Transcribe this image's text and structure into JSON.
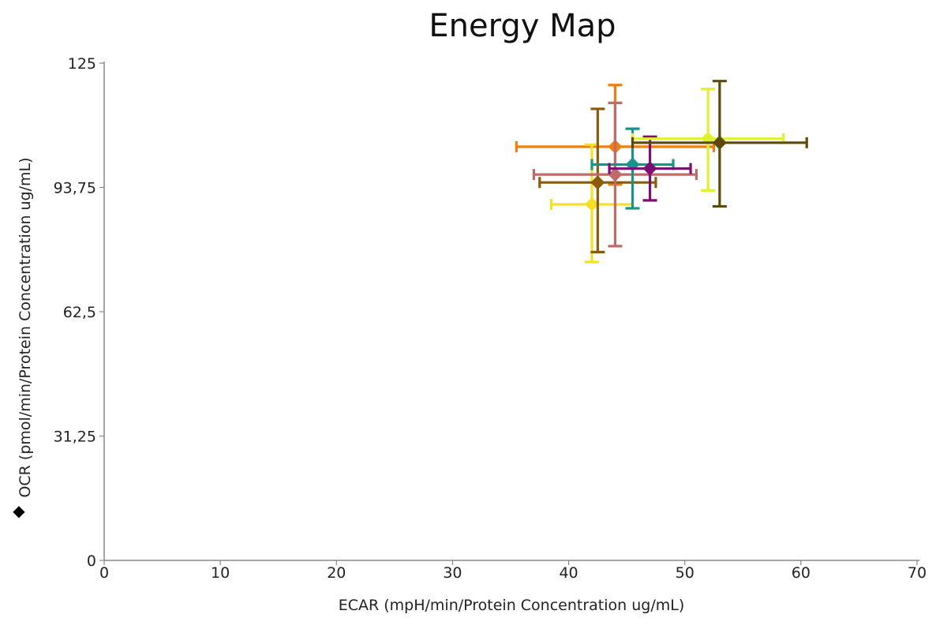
{
  "chart_data": {
    "type": "scatter",
    "title": "Energy Map",
    "xlabel": "ECAR (mpH/min/Protein Concentration ug/mL)",
    "ylabel": "OCR (pmol/min/Protein Concentration ug/mL)",
    "ylabel_marker": "◆",
    "xlim": [
      0,
      70
    ],
    "ylim": [
      0,
      125
    ],
    "x_ticks": [
      "0",
      "10",
      "20",
      "30",
      "40",
      "50",
      "60",
      "70"
    ],
    "x_tick_values": [
      0,
      10,
      20,
      30,
      40,
      50,
      60,
      70
    ],
    "y_ticks": [
      "0",
      "31,25",
      "62,5",
      "93,75",
      "125"
    ],
    "y_tick_values": [
      0,
      31.25,
      62.5,
      93.75,
      125
    ],
    "grid": false,
    "legend": "none",
    "series": [
      {
        "color": "#f07f10",
        "marker": "diamond",
        "x": 44.0,
        "y": 104.0,
        "x_err": [
          35.5,
          52.5
        ],
        "y_err": [
          94.5,
          119.5
        ]
      },
      {
        "color": "#f5e025",
        "marker": "diamond",
        "x": 42.0,
        "y": 89.5,
        "x_err": [
          38.5,
          45.5
        ],
        "y_err": [
          75.0,
          104.5
        ]
      },
      {
        "color": "#8b5a0b",
        "marker": "diamond",
        "x": 42.5,
        "y": 95.0,
        "x_err": [
          37.5,
          47.5
        ],
        "y_err": [
          77.5,
          113.5
        ]
      },
      {
        "color": "#c06a6a",
        "marker": "diamond",
        "x": 44.0,
        "y": 97.0,
        "x_err": [
          37.0,
          51.0
        ],
        "y_err": [
          79.0,
          115.0
        ]
      },
      {
        "color": "#17958a",
        "marker": "diamond",
        "x": 45.5,
        "y": 99.5,
        "x_err": [
          42.0,
          49.0
        ],
        "y_err": [
          88.5,
          108.5
        ]
      },
      {
        "color": "#7a1070",
        "marker": "diamond",
        "x": 47.0,
        "y": 98.5,
        "x_err": [
          43.5,
          50.5
        ],
        "y_err": [
          90.5,
          106.5
        ]
      },
      {
        "color": "#ddf230",
        "marker": "diamond",
        "x": 52.0,
        "y": 106.0,
        "x_err": [
          45.5,
          58.5
        ],
        "y_err": [
          93.0,
          118.5
        ]
      },
      {
        "color": "#5c4a08",
        "marker": "diamond",
        "x": 53.0,
        "y": 105.0,
        "x_err": [
          45.5,
          60.5
        ],
        "y_err": [
          89.0,
          120.5
        ]
      }
    ]
  }
}
